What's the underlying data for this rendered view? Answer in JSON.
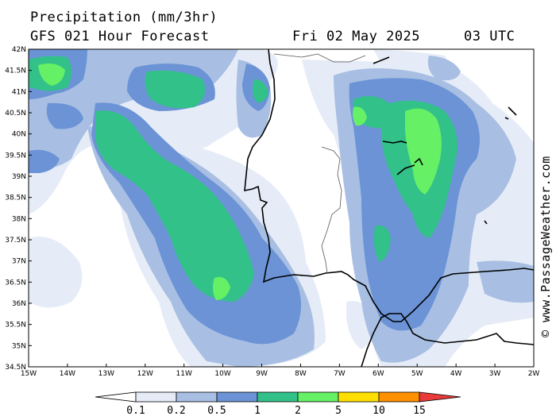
{
  "header": {
    "title": "Precipitation (mm/3hr)",
    "model_line": "GFS 021 Hour Forecast",
    "valid_date": "Fri 02 May 2025",
    "valid_time": "03 UTC"
  },
  "map": {
    "lat_labels": [
      "42N",
      "41.5N",
      "41N",
      "40.5N",
      "40N",
      "39.5N",
      "39N",
      "38.5N",
      "38N",
      "37.5N",
      "37N",
      "36.5N",
      "36N",
      "35.5N",
      "35N",
      "34.5N"
    ],
    "lon_labels": [
      "15W",
      "14W",
      "13W",
      "12W",
      "11W",
      "10W",
      "9W",
      "8W",
      "7W",
      "6W",
      "5W",
      "4W",
      "3W",
      "2W"
    ],
    "lat_range": [
      34.5,
      42
    ],
    "lon_range": [
      -15,
      -2
    ]
  },
  "legend": {
    "labels": [
      "0.1",
      "0.2",
      "0.5",
      "1",
      "2",
      "5",
      "10",
      "15"
    ],
    "colors": [
      "#ffffff",
      "#e6ecf7",
      "#a8bfe3",
      "#6b93d6",
      "#33c18a",
      "#66f066",
      "#ffdf00",
      "#ff9000",
      "#e83a3a"
    ]
  },
  "credit": "© www.PassageWeather.com",
  "colors": {
    "band_0_1": "#e6ecf7",
    "band_0_2": "#a8bfe3",
    "band_0_5": "#6b93d6",
    "band_1": "#33c18a",
    "band_2": "#66f066"
  }
}
